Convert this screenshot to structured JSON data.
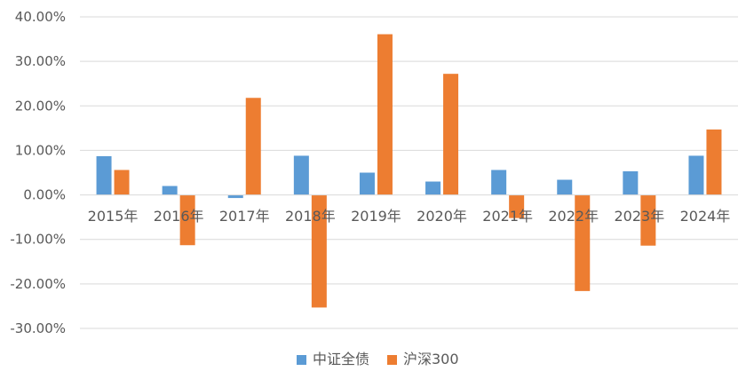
{
  "chart_data": {
    "type": "bar",
    "categories": [
      "2015年",
      "2016年",
      "2017年",
      "2018年",
      "2019年",
      "2020年",
      "2021年",
      "2022年",
      "2023年",
      "2024年"
    ],
    "series": [
      {
        "name": "中证全债",
        "color": "#5B9BD5",
        "values": [
          8.7,
          2.0,
          -0.7,
          8.8,
          5.0,
          3.0,
          5.6,
          3.4,
          5.3,
          8.8
        ]
      },
      {
        "name": "沪深300",
        "color": "#ED7D31",
        "values": [
          5.6,
          -11.3,
          21.8,
          -25.3,
          36.1,
          27.2,
          -5.2,
          -21.6,
          -11.4,
          14.7
        ]
      }
    ],
    "yticks": [
      "40.00%",
      "30.00%",
      "20.00%",
      "10.00%",
      "0.00%",
      "-10.00%",
      "-20.00%",
      "-30.00%"
    ],
    "ylim": [
      -30,
      40
    ],
    "grid": true,
    "legend_position": "bottom",
    "title": "",
    "xlabel": "",
    "ylabel": ""
  }
}
